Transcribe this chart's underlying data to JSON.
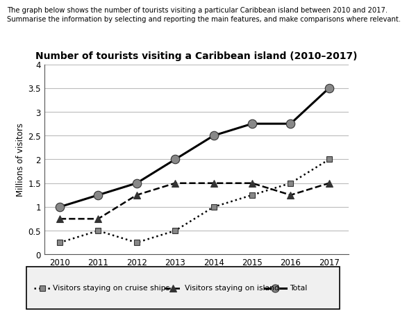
{
  "title": "Number of tourists visiting a Caribbean island (2010–2017)",
  "header_line1": "The graph below shows the number of tourists visiting a particular Caribbean island between 2010 and 2017.",
  "header_line2": "Summarise the information by selecting and reporting the main features, and make comparisons where relevant.",
  "ylabel": "Millions of visitors",
  "years": [
    2010,
    2011,
    2012,
    2013,
    2014,
    2015,
    2016,
    2017
  ],
  "cruise_ships": [
    0.25,
    0.5,
    0.25,
    0.5,
    1.0,
    1.25,
    1.5,
    2.0
  ],
  "on_island": [
    0.75,
    0.75,
    1.25,
    1.5,
    1.5,
    1.5,
    1.25,
    1.5
  ],
  "total": [
    1.0,
    1.25,
    1.5,
    2.0,
    2.5,
    2.75,
    2.75,
    3.5
  ],
  "ylim": [
    0,
    4
  ],
  "yticks": [
    0,
    0.5,
    1.0,
    1.5,
    2.0,
    2.5,
    3.0,
    3.5,
    4.0
  ],
  "line_color": "#000000",
  "bg_color": "#ffffff",
  "grid_color": "#bbbbbb",
  "marker_gray": "#888888",
  "marker_dark": "#333333",
  "cruise_marker": "s",
  "island_marker": "^",
  "total_marker": "o"
}
